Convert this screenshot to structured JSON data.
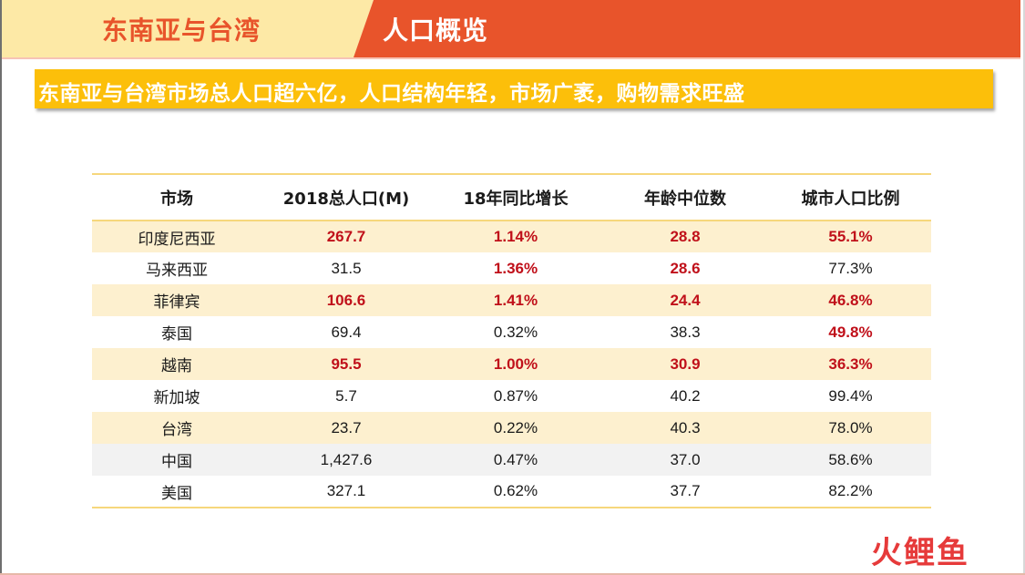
{
  "header": {
    "left_title": "东南亚与台湾",
    "right_title": "人口概览",
    "colors": {
      "left_bg": "#fde9a6",
      "right_bg": "#e8542b",
      "left_text": "#e8542b"
    }
  },
  "banner": {
    "text": "东南亚与台湾市场总人口超六亿，人口结构年轻，市场广袤，购物需求旺盛",
    "color": "#fcbf0a"
  },
  "table": {
    "headers": [
      "市场",
      "2018总人口(M)",
      "18年同比增长",
      "年龄中位数",
      "城市人口比例"
    ],
    "rows": [
      {
        "cells": [
          "印度尼西亚",
          "267.7",
          "1.14%",
          "28.8",
          "55.1%"
        ],
        "highlight": [
          false,
          true,
          true,
          true,
          true
        ],
        "shade": "yellow"
      },
      {
        "cells": [
          "马来西亚",
          "31.5",
          "1.36%",
          "28.6",
          "77.3%"
        ],
        "highlight": [
          false,
          false,
          true,
          true,
          false
        ],
        "shade": "white"
      },
      {
        "cells": [
          "菲律宾",
          "106.6",
          "1.41%",
          "24.4",
          "46.8%"
        ],
        "highlight": [
          false,
          true,
          true,
          true,
          true
        ],
        "shade": "yellow"
      },
      {
        "cells": [
          "泰国",
          "69.4",
          "0.32%",
          "38.3",
          "49.8%"
        ],
        "highlight": [
          false,
          false,
          false,
          false,
          true
        ],
        "shade": "white"
      },
      {
        "cells": [
          "越南",
          "95.5",
          "1.00%",
          "30.9",
          "36.3%"
        ],
        "highlight": [
          false,
          true,
          true,
          true,
          true
        ],
        "shade": "yellow"
      },
      {
        "cells": [
          "新加坡",
          "5.7",
          "0.87%",
          "40.2",
          "99.4%"
        ],
        "highlight": [
          false,
          false,
          false,
          false,
          false
        ],
        "shade": "white"
      },
      {
        "cells": [
          "台湾",
          "23.7",
          "0.22%",
          "40.3",
          "78.0%"
        ],
        "highlight": [
          false,
          false,
          false,
          false,
          false
        ],
        "shade": "yellow"
      },
      {
        "cells": [
          "中国",
          "1,427.6",
          "0.47%",
          "37.0",
          "58.6%"
        ],
        "highlight": [
          false,
          false,
          false,
          false,
          false
        ],
        "shade": "grey"
      },
      {
        "cells": [
          "美国",
          "327.1",
          "0.62%",
          "37.7",
          "82.2%"
        ],
        "highlight": [
          false,
          false,
          false,
          false,
          false
        ],
        "shade": "white"
      }
    ],
    "highlight_color": "#c0101a"
  },
  "logo": {
    "text": "火鲤鱼"
  }
}
